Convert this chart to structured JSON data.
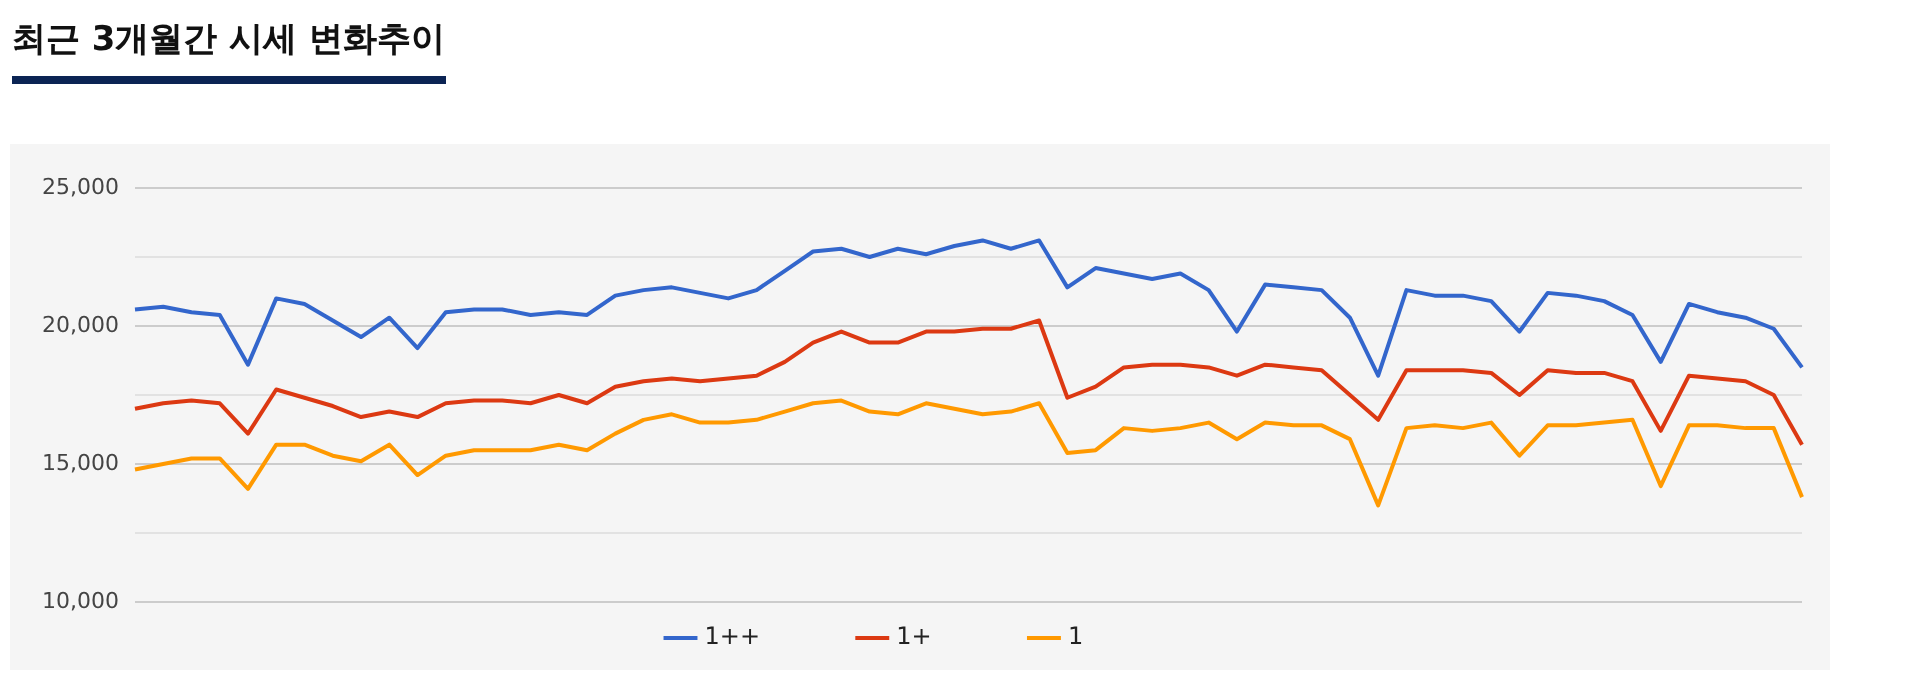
{
  "chart_data": {
    "type": "line",
    "title": "최근 3개월간 시세 변화추이",
    "categories": [
      null,
      null,
      null,
      null,
      null,
      null,
      null,
      null,
      null,
      null,
      null,
      null,
      null,
      null,
      null,
      null,
      null,
      null,
      null,
      null,
      null,
      null,
      null,
      null,
      null,
      null,
      null,
      null,
      null,
      null,
      null,
      null,
      null,
      null,
      null,
      null,
      null,
      null,
      null,
      null,
      null,
      null,
      null,
      null,
      null,
      null,
      null,
      null,
      null,
      null,
      null,
      null,
      null,
      null,
      null,
      null,
      null,
      null,
      null,
      null
    ],
    "series": [
      {
        "name": "1++",
        "color": "#3366cc",
        "values": [
          20600,
          20700,
          20500,
          20400,
          18600,
          21000,
          20800,
          20200,
          19600,
          20300,
          19200,
          20500,
          20600,
          20600,
          20400,
          20500,
          20400,
          21100,
          21300,
          21400,
          21200,
          21000,
          21300,
          22000,
          22700,
          22800,
          22500,
          22800,
          22600,
          22900,
          23100,
          22800,
          23100,
          21400,
          22100,
          21900,
          21700,
          21900,
          21300,
          19800,
          21500,
          21400,
          21300,
          20300,
          18200,
          21300,
          21100,
          21100,
          20900,
          19800,
          21200,
          21100,
          20900,
          20400,
          18700,
          20800,
          20500,
          20300,
          19900,
          18500
        ]
      },
      {
        "name": "1+",
        "color": "#dc3912",
        "values": [
          17000,
          17200,
          17300,
          17200,
          16100,
          17700,
          17400,
          17100,
          16700,
          16900,
          16700,
          17200,
          17300,
          17300,
          17200,
          17500,
          17200,
          17800,
          18000,
          18100,
          18000,
          18100,
          18200,
          18700,
          19400,
          19800,
          19400,
          19400,
          19800,
          19800,
          19900,
          19900,
          20200,
          17400,
          17800,
          18500,
          18600,
          18600,
          18500,
          18200,
          18600,
          18500,
          18400,
          17500,
          16600,
          18400,
          18400,
          18400,
          18300,
          17500,
          18400,
          18300,
          18300,
          18000,
          16200,
          18200,
          18100,
          18000,
          17500,
          15700
        ]
      },
      {
        "name": "1",
        "color": "#ff9900",
        "values": [
          14800,
          15000,
          15200,
          15200,
          14100,
          15700,
          15700,
          15300,
          15100,
          15700,
          14600,
          15300,
          15500,
          15500,
          15500,
          15700,
          15500,
          16100,
          16600,
          16800,
          16500,
          16500,
          16600,
          16900,
          17200,
          17300,
          16900,
          16800,
          17200,
          17000,
          16800,
          16900,
          17200,
          15400,
          15500,
          16300,
          16200,
          16300,
          16500,
          15900,
          16500,
          16400,
          16400,
          15900,
          13500,
          16300,
          16400,
          16300,
          16500,
          15300,
          16400,
          16400,
          16500,
          16600,
          14200,
          16400,
          16400,
          16300,
          16300,
          13800
        ]
      }
    ],
    "ylim": [
      10000,
      25000
    ],
    "yticks": [
      {
        "value": 10000,
        "label": "10,000"
      },
      {
        "value": 12500,
        "label": null
      },
      {
        "value": 15000,
        "label": "15,000"
      },
      {
        "value": 17500,
        "label": null
      },
      {
        "value": 20000,
        "label": "20,000"
      },
      {
        "value": 22500,
        "label": null
      },
      {
        "value": 25000,
        "label": "25,000"
      }
    ],
    "grid": "y",
    "legend": "bottom",
    "marker": "none",
    "line_style": "solid"
  }
}
